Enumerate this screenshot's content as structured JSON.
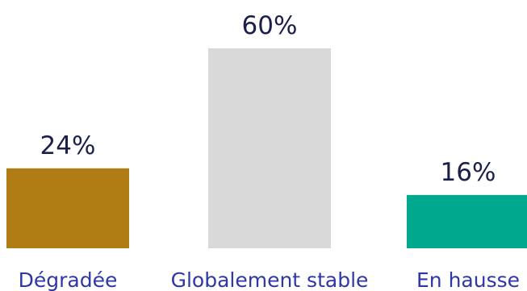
{
  "chart_data": {
    "type": "bar",
    "categories": [
      "Dégradée",
      "Globalement stable",
      "En hausse"
    ],
    "values": [
      24,
      60,
      16
    ],
    "data_labels": [
      "24%",
      "60%",
      "16%"
    ],
    "unit": "%",
    "ylim": [
      0,
      60
    ],
    "grid": false,
    "legend": "none",
    "colors": [
      "#b07d14",
      "#d9d9d9",
      "#00a88e"
    ],
    "label_color": "#1b1f4b",
    "category_color": "#2f36a8"
  }
}
